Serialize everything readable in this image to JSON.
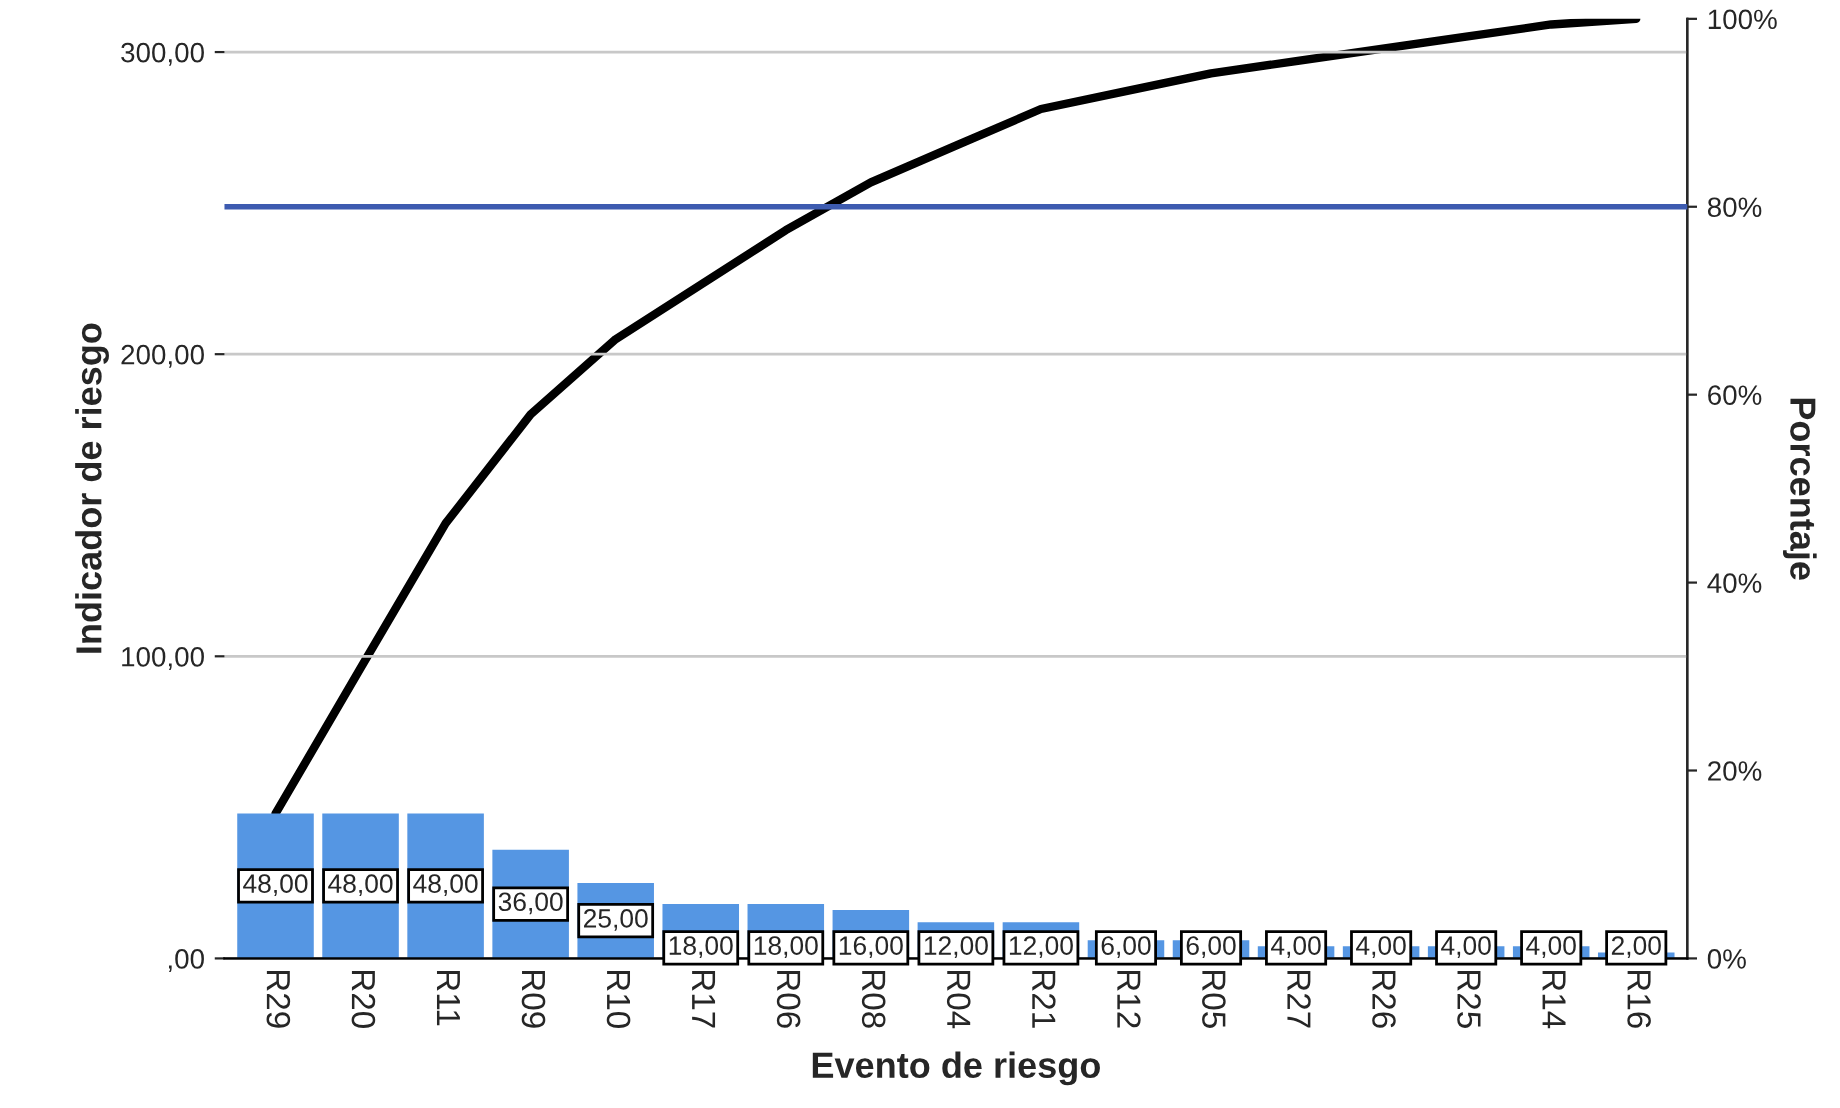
{
  "chart_data": {
    "type": "bar",
    "xlabel": "Evento de riesgo",
    "ylabel": "Indicador de riesgo",
    "y2label": "Porcentaje",
    "categories": [
      "R29",
      "R20",
      "R11",
      "R09",
      "R10",
      "R17",
      "R06",
      "R08",
      "R04",
      "R21",
      "R12",
      "R05",
      "R27",
      "R26",
      "R25",
      "R14",
      "R16"
    ],
    "series": [
      {
        "color": "#5596e3",
        "values": [
          48,
          48,
          48,
          36,
          25,
          18,
          18,
          16,
          12,
          12,
          6,
          6,
          4,
          4,
          4,
          4,
          2
        ],
        "value_labels": [
          "48,00",
          "48,00",
          "48,00",
          "36,00",
          "25,00",
          "18,00",
          "18,00",
          "16,00",
          "12,00",
          "12,00",
          "6,00",
          "6,00",
          "4,00",
          "4,00",
          "4,00",
          "4,00",
          "2,00"
        ]
      },
      {
        "type": "line",
        "axis": "y2",
        "color": "#000000",
        "values": [
          15.4,
          30.9,
          46.3,
          57.9,
          65.9,
          71.7,
          77.5,
          82.6,
          86.5,
          90.4,
          92.3,
          94.2,
          95.5,
          96.8,
          98.1,
          99.4,
          100
        ]
      }
    ],
    "ylim": [
      0,
      311
    ],
    "yticks": [
      {
        "value": 0,
        "label": ",00"
      },
      {
        "value": 100,
        "label": "100,00"
      },
      {
        "value": 200,
        "label": "200,00"
      },
      {
        "value": 300,
        "label": "300,00"
      }
    ],
    "y2lim": [
      0,
      100
    ],
    "y2ticks": [
      {
        "value": 0,
        "label": "0%"
      },
      {
        "value": 20,
        "label": "20%"
      },
      {
        "value": 40,
        "label": "40%"
      },
      {
        "value": 60,
        "label": "60%"
      },
      {
        "value": 80,
        "label": "80%"
      },
      {
        "value": 100,
        "label": "100%"
      }
    ],
    "ref_lines": [
      {
        "axis": "y2",
        "value": 80,
        "color": "#3d5bb0"
      }
    ],
    "grid": "y",
    "legend": false
  }
}
